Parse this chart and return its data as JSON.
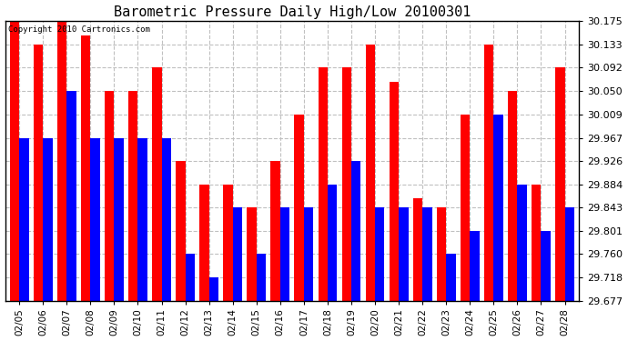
{
  "title": "Barometric Pressure Daily High/Low 20100301",
  "copyright": "Copyright 2010 Cartronics.com",
  "dates": [
    "02/05",
    "02/06",
    "02/07",
    "02/08",
    "02/09",
    "02/10",
    "02/11",
    "02/12",
    "02/13",
    "02/14",
    "02/15",
    "02/16",
    "02/17",
    "02/18",
    "02/19",
    "02/20",
    "02/21",
    "02/22",
    "02/23",
    "02/24",
    "02/25",
    "02/26",
    "02/27",
    "02/28"
  ],
  "highs": [
    30.175,
    30.133,
    30.175,
    30.15,
    30.05,
    30.05,
    30.092,
    29.926,
    29.884,
    29.884,
    29.843,
    29.926,
    30.009,
    30.092,
    30.092,
    30.133,
    30.067,
    29.86,
    29.843,
    30.009,
    30.133,
    30.05,
    29.884,
    30.092
  ],
  "lows": [
    29.967,
    29.967,
    30.05,
    29.967,
    29.967,
    29.967,
    29.967,
    29.76,
    29.718,
    29.843,
    29.76,
    29.843,
    29.843,
    29.884,
    29.926,
    29.843,
    29.843,
    29.843,
    29.76,
    29.801,
    30.009,
    29.884,
    29.801,
    29.843
  ],
  "high_color": "#ff0000",
  "low_color": "#0000ff",
  "bg_color": "#ffffff",
  "grid_color": "#c0c0c0",
  "ymin": 29.677,
  "ymax": 30.175,
  "yticks": [
    29.677,
    29.718,
    29.76,
    29.801,
    29.843,
    29.884,
    29.926,
    29.967,
    30.009,
    30.05,
    30.092,
    30.133,
    30.175
  ],
  "title_fontsize": 11,
  "bar_width": 0.4
}
